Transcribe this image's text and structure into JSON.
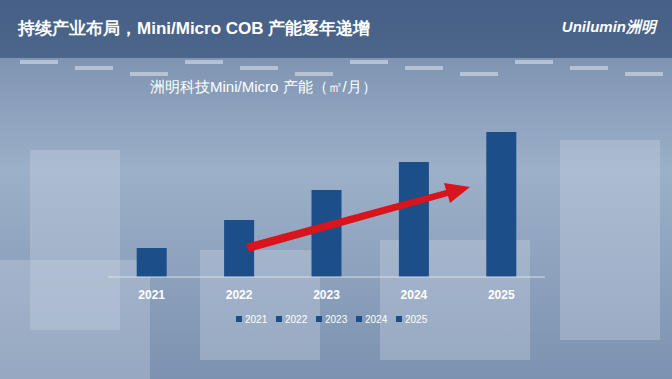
{
  "header": {
    "title": "持续产业布局，Mini/Micro COB 产能逐年递增",
    "logo": "Unilumin洲明"
  },
  "chart_data": {
    "type": "bar",
    "title": "洲明科技Mini/Micro 产能（㎡/月）",
    "categories": [
      "2021",
      "2022",
      "2023",
      "2024",
      "2025"
    ],
    "values": [
      29,
      57,
      87,
      115,
      145
    ],
    "color": "#1c4e8a",
    "ylim": [
      0,
      150
    ],
    "grid": false,
    "legend": "bottom",
    "tick_labels": "x"
  }
}
